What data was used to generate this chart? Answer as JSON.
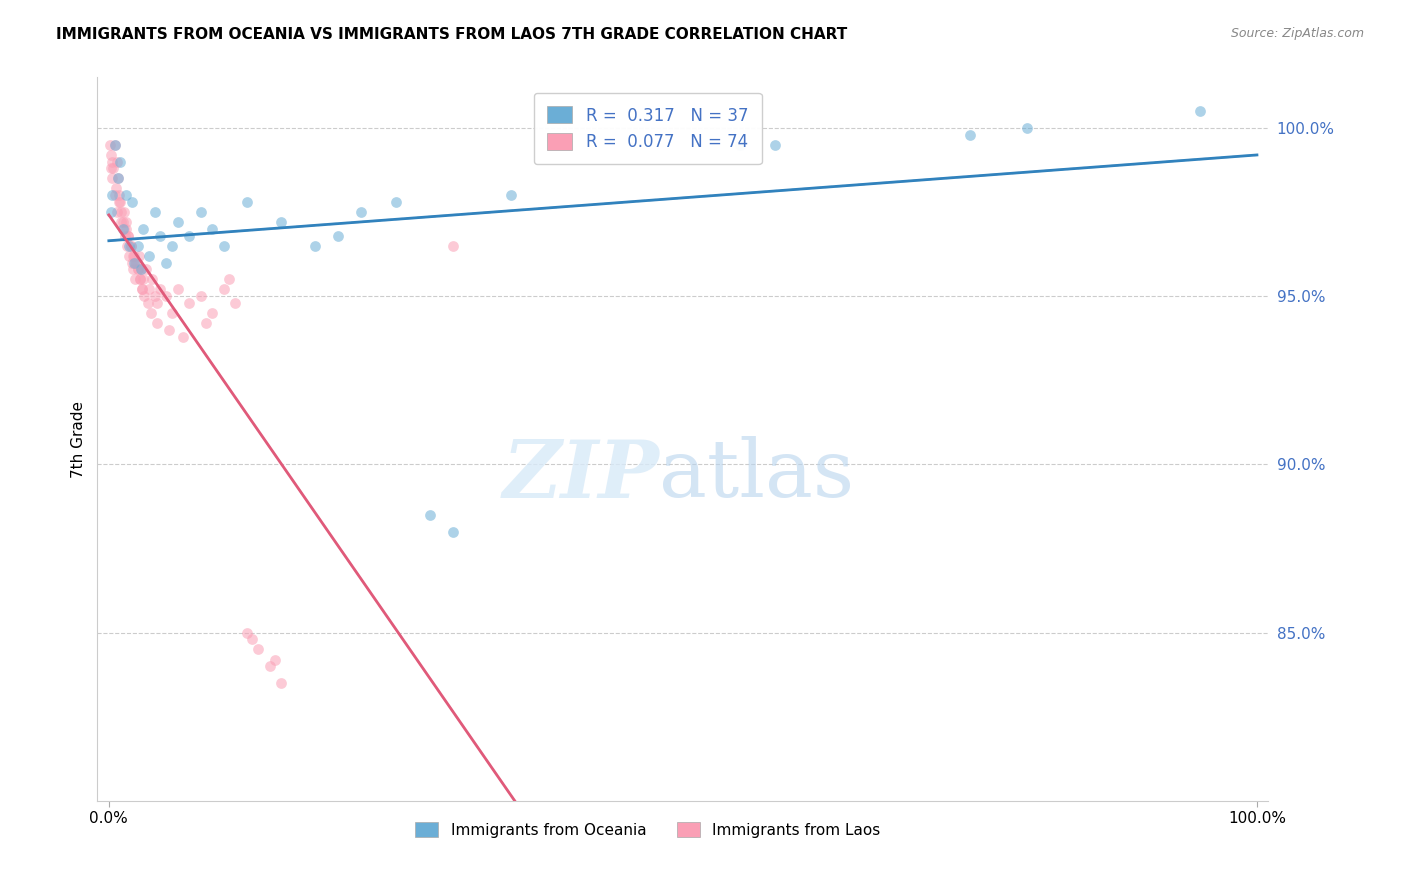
{
  "title": "IMMIGRANTS FROM OCEANIA VS IMMIGRANTS FROM LAOS 7TH GRADE CORRELATION CHART",
  "source": "Source: ZipAtlas.com",
  "ylabel": "7th Grade",
  "ylabel_right_ticks": [
    100.0,
    95.0,
    90.0,
    85.0
  ],
  "ylabel_right_tick_labels": [
    "100.0%",
    "95.0%",
    "90.0%",
    "85.0%"
  ],
  "R_oceania": 0.317,
  "N_oceania": 37,
  "R_laos": 0.077,
  "N_laos": 74,
  "blue_color": "#6baed6",
  "pink_color": "#fa9fb5",
  "blue_line_color": "#3182bd",
  "pink_line_color": "#e05a7a",
  "scatter_alpha": 0.55,
  "scatter_size": 60,
  "oceania_x": [
    0.2,
    0.5,
    0.8,
    1.0,
    1.2,
    1.5,
    1.8,
    2.0,
    2.2,
    2.5,
    2.8,
    3.0,
    3.5,
    4.0,
    4.5,
    5.0,
    5.5,
    6.0,
    7.0,
    8.0,
    9.0,
    10.0,
    12.0,
    15.0,
    18.0,
    20.0,
    22.0,
    25.0,
    28.0,
    30.0,
    35.0,
    55.0,
    58.0,
    75.0,
    80.0,
    95.0,
    0.3
  ],
  "oceania_y": [
    97.5,
    99.5,
    98.5,
    99.0,
    97.0,
    98.0,
    96.5,
    97.8,
    96.0,
    96.5,
    95.8,
    97.0,
    96.2,
    97.5,
    96.8,
    96.0,
    96.5,
    97.2,
    96.8,
    97.5,
    97.0,
    96.5,
    97.8,
    97.2,
    96.5,
    96.8,
    97.5,
    97.8,
    88.5,
    88.0,
    98.0,
    99.5,
    99.5,
    99.8,
    100.0,
    100.5,
    98.0
  ],
  "laos_x": [
    0.1,
    0.2,
    0.3,
    0.4,
    0.5,
    0.6,
    0.7,
    0.8,
    0.9,
    1.0,
    1.1,
    1.2,
    1.3,
    1.4,
    1.5,
    1.6,
    1.7,
    1.8,
    1.9,
    2.0,
    2.1,
    2.2,
    2.3,
    2.4,
    2.5,
    2.6,
    2.7,
    2.8,
    2.9,
    3.0,
    3.2,
    3.5,
    3.8,
    4.0,
    4.2,
    4.5,
    5.0,
    5.5,
    6.0,
    7.0,
    8.0,
    9.0,
    10.0,
    11.0,
    12.0,
    13.0,
    14.0,
    15.0,
    0.2,
    0.3,
    0.5,
    0.7,
    0.9,
    1.1,
    1.3,
    1.5,
    1.7,
    1.9,
    2.1,
    2.3,
    2.5,
    2.7,
    2.9,
    3.1,
    3.4,
    3.7,
    4.2,
    5.2,
    6.5,
    8.5,
    10.5,
    12.5,
    14.5,
    30.0
  ],
  "laos_y": [
    99.5,
    99.2,
    99.0,
    98.8,
    99.5,
    98.2,
    99.0,
    98.5,
    98.0,
    97.8,
    97.5,
    97.2,
    97.0,
    96.8,
    97.2,
    96.5,
    96.8,
    96.2,
    96.5,
    96.0,
    95.8,
    96.2,
    95.5,
    96.0,
    95.8,
    96.2,
    95.5,
    95.8,
    95.2,
    95.5,
    95.8,
    95.2,
    95.5,
    95.0,
    94.8,
    95.2,
    95.0,
    94.5,
    95.2,
    94.8,
    95.0,
    94.5,
    95.2,
    94.8,
    85.0,
    84.5,
    84.0,
    83.5,
    98.8,
    98.5,
    98.0,
    97.5,
    97.8,
    97.2,
    97.5,
    97.0,
    96.8,
    96.5,
    96.2,
    96.0,
    95.8,
    95.5,
    95.2,
    95.0,
    94.8,
    94.5,
    94.2,
    94.0,
    93.8,
    94.2,
    95.5,
    84.8,
    84.2,
    96.5
  ]
}
